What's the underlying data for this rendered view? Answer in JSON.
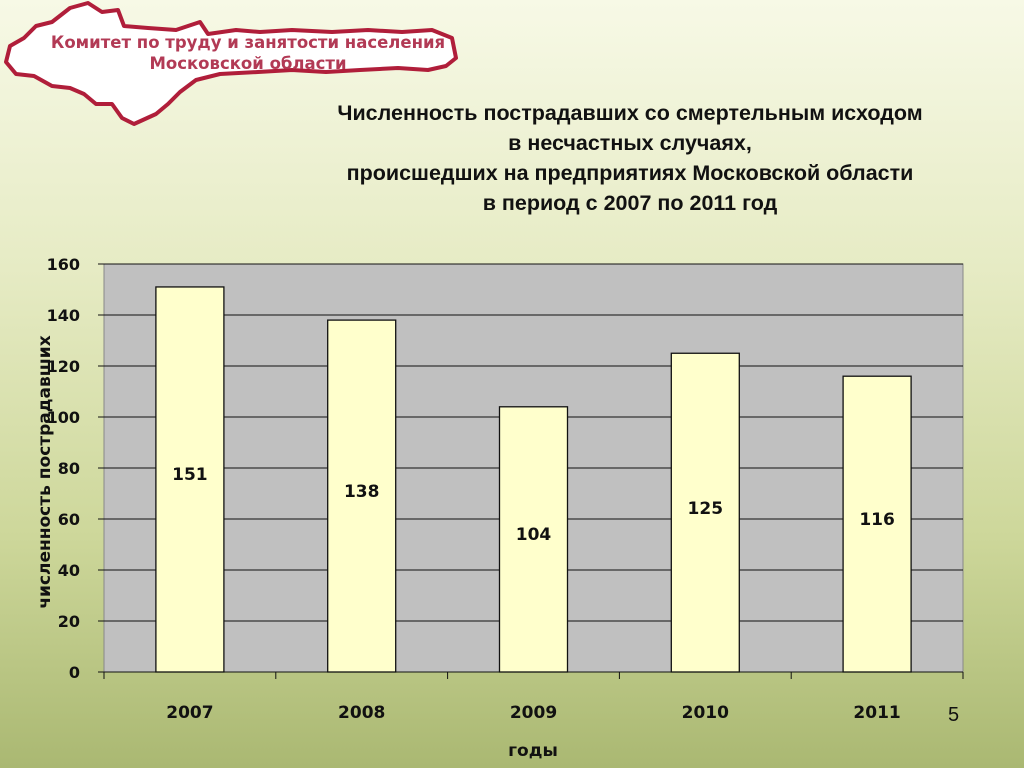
{
  "header": {
    "org_line1": "Комитет по труду и занятости населения",
    "org_line2": "Московской области"
  },
  "title_lines": [
    "Численность пострадавших со смертельным исходом",
    "в несчастных случаях,",
    "происшедших на предприятиях Московской области",
    "в период с 2007 по 2011 год"
  ],
  "page_number": "5",
  "colors": {
    "bar_fill": "#ffffcc",
    "plot_bg": "#c0c0c0",
    "org_text": "#b23a55"
  },
  "chart_data": {
    "type": "bar",
    "categories": [
      "2007",
      "2008",
      "2009",
      "2010",
      "2011"
    ],
    "values": [
      151,
      138,
      104,
      125,
      116
    ],
    "data_labels": [
      "151",
      "138",
      "104",
      "125",
      "116"
    ],
    "title": "Численность пострадавших со смертельным исходом в несчастных случаях, происшедших на предприятиях Московской области в период с 2007 по 2011 год",
    "xlabel": "годы",
    "ylabel": "численность пострадавших",
    "ylim": [
      0,
      160
    ],
    "yticks": [
      0,
      20,
      40,
      60,
      80,
      100,
      120,
      140,
      160
    ],
    "grid": true,
    "legend": "none"
  }
}
